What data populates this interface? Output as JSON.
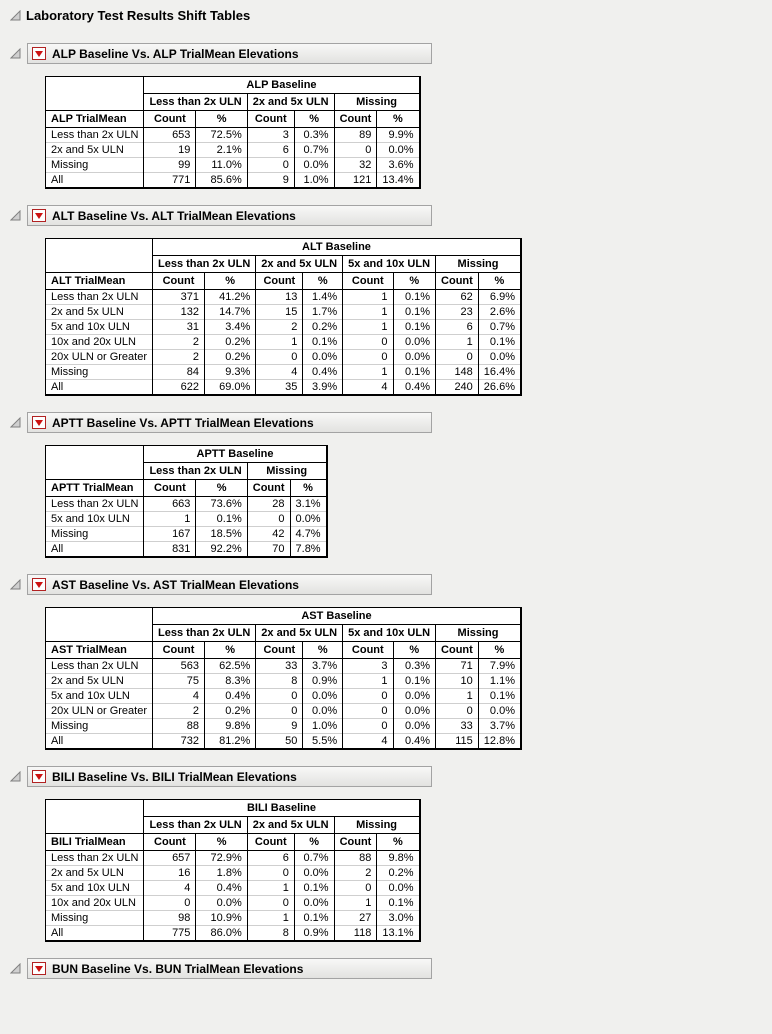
{
  "page_title": "Laboratory Test Results Shift Tables",
  "colors": {
    "red_triangle": "#cc1111",
    "disclosure_fill": "#d0d0d0",
    "disclosure_stroke": "#808080",
    "title_bar_border": "#a3a3a3",
    "table_border": "#000000"
  },
  "icons": {
    "disclosure": "disclosure-triangle-open",
    "section_menu": "red-triangle-menu"
  },
  "sections": [
    {
      "title": "ALP Baseline Vs. ALP TrialMean Elevations",
      "table": {
        "group_header": "ALP Baseline",
        "row_label_header": "ALP TrialMean",
        "col_groups": [
          "Less than 2x ULN",
          "2x and 5x ULN",
          "Missing"
        ],
        "sub_headers": [
          "Count",
          "%"
        ],
        "rows": [
          {
            "label": "Less than 2x ULN",
            "values": [
              "653",
              "72.5%",
              "3",
              "0.3%",
              "89",
              "9.9%"
            ]
          },
          {
            "label": "2x and 5x ULN",
            "values": [
              "19",
              "2.1%",
              "6",
              "0.7%",
              "0",
              "0.0%"
            ]
          },
          {
            "label": "Missing",
            "values": [
              "99",
              "11.0%",
              "0",
              "0.0%",
              "32",
              "3.6%"
            ]
          },
          {
            "label": "All",
            "values": [
              "771",
              "85.6%",
              "9",
              "1.0%",
              "121",
              "13.4%"
            ]
          }
        ]
      }
    },
    {
      "title": "ALT Baseline Vs. ALT TrialMean Elevations",
      "table": {
        "group_header": "ALT Baseline",
        "row_label_header": "ALT TrialMean",
        "col_groups": [
          "Less than 2x ULN",
          "2x and 5x ULN",
          "5x and 10x ULN",
          "Missing"
        ],
        "sub_headers": [
          "Count",
          "%"
        ],
        "rows": [
          {
            "label": "Less than 2x ULN",
            "values": [
              "371",
              "41.2%",
              "13",
              "1.4%",
              "1",
              "0.1%",
              "62",
              "6.9%"
            ]
          },
          {
            "label": "2x and 5x ULN",
            "values": [
              "132",
              "14.7%",
              "15",
              "1.7%",
              "1",
              "0.1%",
              "23",
              "2.6%"
            ]
          },
          {
            "label": "5x and 10x ULN",
            "values": [
              "31",
              "3.4%",
              "2",
              "0.2%",
              "1",
              "0.1%",
              "6",
              "0.7%"
            ]
          },
          {
            "label": "10x and 20x ULN",
            "values": [
              "2",
              "0.2%",
              "1",
              "0.1%",
              "0",
              "0.0%",
              "1",
              "0.1%"
            ]
          },
          {
            "label": "20x ULN or Greater",
            "values": [
              "2",
              "0.2%",
              "0",
              "0.0%",
              "0",
              "0.0%",
              "0",
              "0.0%"
            ]
          },
          {
            "label": "Missing",
            "values": [
              "84",
              "9.3%",
              "4",
              "0.4%",
              "1",
              "0.1%",
              "148",
              "16.4%"
            ]
          },
          {
            "label": "All",
            "values": [
              "622",
              "69.0%",
              "35",
              "3.9%",
              "4",
              "0.4%",
              "240",
              "26.6%"
            ]
          }
        ]
      }
    },
    {
      "title": "APTT Baseline Vs. APTT TrialMean Elevations",
      "table": {
        "group_header": "APTT Baseline",
        "row_label_header": "APTT TrialMean",
        "col_groups": [
          "Less than 2x ULN",
          "Missing"
        ],
        "sub_headers": [
          "Count",
          "%"
        ],
        "rows": [
          {
            "label": "Less than 2x ULN",
            "values": [
              "663",
              "73.6%",
              "28",
              "3.1%"
            ]
          },
          {
            "label": "5x and 10x ULN",
            "values": [
              "1",
              "0.1%",
              "0",
              "0.0%"
            ]
          },
          {
            "label": "Missing",
            "values": [
              "167",
              "18.5%",
              "42",
              "4.7%"
            ]
          },
          {
            "label": "All",
            "values": [
              "831",
              "92.2%",
              "70",
              "7.8%"
            ]
          }
        ]
      }
    },
    {
      "title": "AST Baseline Vs. AST TrialMean Elevations",
      "table": {
        "group_header": "AST Baseline",
        "row_label_header": "AST TrialMean",
        "col_groups": [
          "Less than 2x ULN",
          "2x and 5x ULN",
          "5x and 10x ULN",
          "Missing"
        ],
        "sub_headers": [
          "Count",
          "%"
        ],
        "rows": [
          {
            "label": "Less than 2x ULN",
            "values": [
              "563",
              "62.5%",
              "33",
              "3.7%",
              "3",
              "0.3%",
              "71",
              "7.9%"
            ]
          },
          {
            "label": "2x and 5x ULN",
            "values": [
              "75",
              "8.3%",
              "8",
              "0.9%",
              "1",
              "0.1%",
              "10",
              "1.1%"
            ]
          },
          {
            "label": "5x and 10x ULN",
            "values": [
              "4",
              "0.4%",
              "0",
              "0.0%",
              "0",
              "0.0%",
              "1",
              "0.1%"
            ]
          },
          {
            "label": "20x ULN or Greater",
            "values": [
              "2",
              "0.2%",
              "0",
              "0.0%",
              "0",
              "0.0%",
              "0",
              "0.0%"
            ]
          },
          {
            "label": "Missing",
            "values": [
              "88",
              "9.8%",
              "9",
              "1.0%",
              "0",
              "0.0%",
              "33",
              "3.7%"
            ]
          },
          {
            "label": "All",
            "values": [
              "732",
              "81.2%",
              "50",
              "5.5%",
              "4",
              "0.4%",
              "115",
              "12.8%"
            ]
          }
        ]
      }
    },
    {
      "title": "BILI Baseline Vs. BILI TrialMean Elevations",
      "table": {
        "group_header": "BILI Baseline",
        "row_label_header": "BILI TrialMean",
        "col_groups": [
          "Less than 2x ULN",
          "2x and 5x ULN",
          "Missing"
        ],
        "sub_headers": [
          "Count",
          "%"
        ],
        "rows": [
          {
            "label": "Less than 2x ULN",
            "values": [
              "657",
              "72.9%",
              "6",
              "0.7%",
              "88",
              "9.8%"
            ]
          },
          {
            "label": "2x and 5x ULN",
            "values": [
              "16",
              "1.8%",
              "0",
              "0.0%",
              "2",
              "0.2%"
            ]
          },
          {
            "label": "5x and 10x ULN",
            "values": [
              "4",
              "0.4%",
              "1",
              "0.1%",
              "0",
              "0.0%"
            ]
          },
          {
            "label": "10x and 20x ULN",
            "values": [
              "0",
              "0.0%",
              "0",
              "0.0%",
              "1",
              "0.1%"
            ]
          },
          {
            "label": "Missing",
            "values": [
              "98",
              "10.9%",
              "1",
              "0.1%",
              "27",
              "3.0%"
            ]
          },
          {
            "label": "All",
            "values": [
              "775",
              "86.0%",
              "8",
              "0.9%",
              "118",
              "13.1%"
            ]
          }
        ]
      }
    },
    {
      "title": "BUN Baseline Vs. BUN TrialMean Elevations",
      "table": null
    }
  ]
}
